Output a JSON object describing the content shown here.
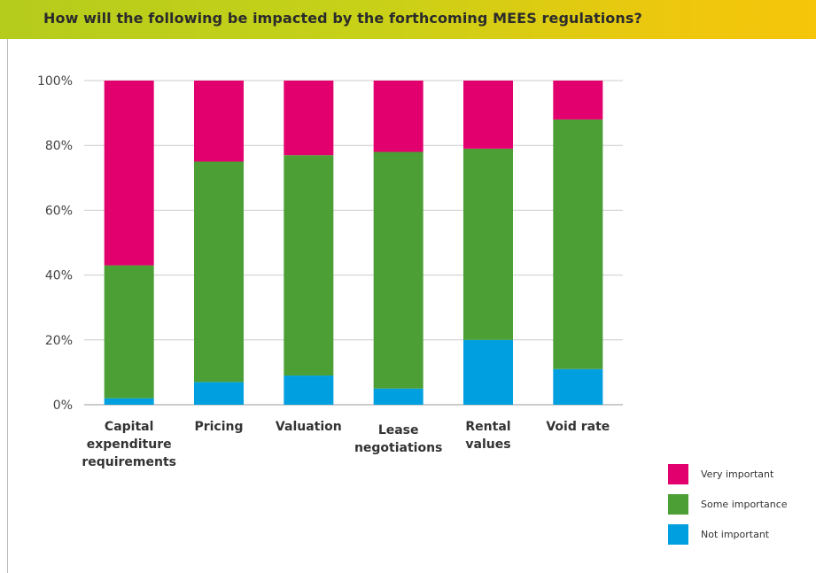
{
  "title": "How will the following be impacted by the forthcoming MEES regulations?",
  "colors": {
    "very_important": "#e2006e",
    "some_importance": "#4c9f35",
    "not_important": "#009fdf",
    "grid": "#cccccc",
    "axis": "#999999"
  },
  "chart_data": {
    "type": "bar",
    "stacked": true,
    "categories": [
      [
        "Capital",
        "expenditure",
        "requirements"
      ],
      [
        "Pricing"
      ],
      [
        "Valuation"
      ],
      [
        "Lease",
        "negotiations"
      ],
      [
        "Rental",
        "values"
      ],
      [
        "Void rate"
      ]
    ],
    "series": [
      {
        "name": "Not important",
        "color": "#009fdf",
        "values": [
          2,
          7,
          9,
          5,
          20,
          11
        ]
      },
      {
        "name": "Some importance",
        "color": "#4c9f35",
        "values": [
          41,
          68,
          68,
          73,
          59,
          77
        ]
      },
      {
        "name": "Very important",
        "color": "#e2006e",
        "values": [
          57,
          25,
          23,
          22,
          21,
          12
        ]
      }
    ],
    "y_ticks": [
      "0%",
      "20%",
      "40%",
      "60%",
      "80%",
      "100%"
    ],
    "ylim": [
      0,
      100
    ],
    "grid": true,
    "legend_position": "bottom-right"
  },
  "legend": [
    {
      "label": "Very important",
      "color": "#e2006e"
    },
    {
      "label": "Some importance",
      "color": "#4c9f35"
    },
    {
      "label": "Not important",
      "color": "#009fdf"
    }
  ]
}
